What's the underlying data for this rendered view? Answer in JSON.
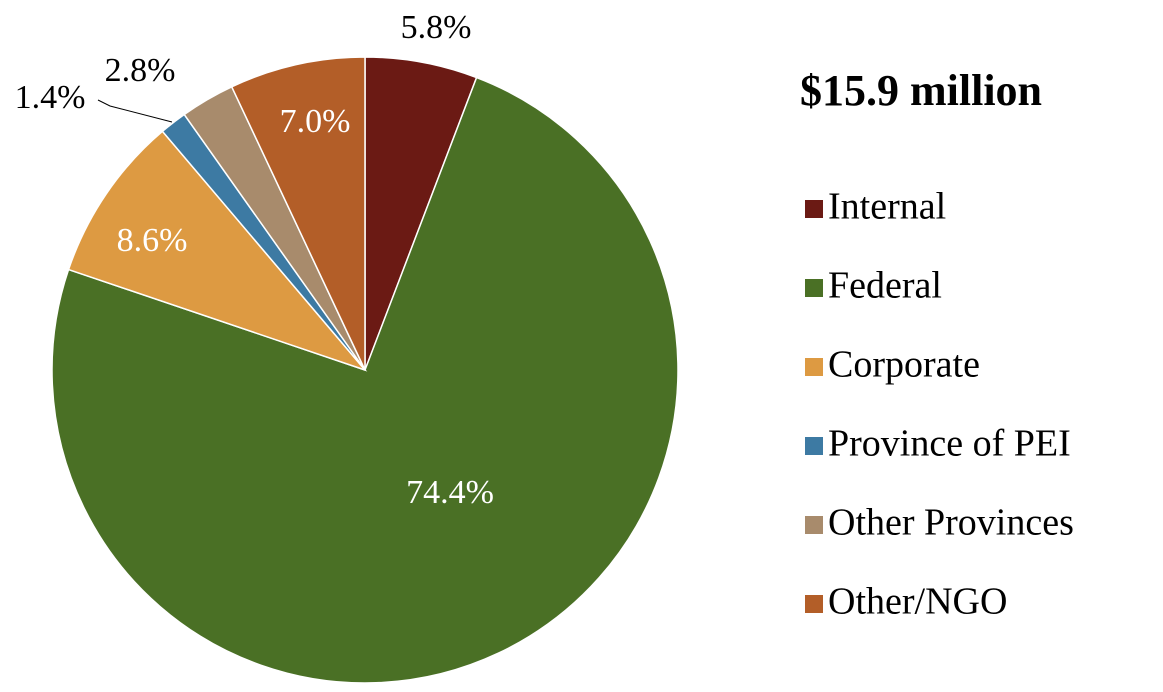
{
  "chart_data": {
    "type": "pie",
    "title": "$15.9 million",
    "categories": [
      "Internal",
      "Federal",
      "Corporate",
      "Province of PEI",
      "Other Provinces",
      "Other/NGO"
    ],
    "values": [
      5.8,
      74.4,
      8.6,
      1.4,
      2.8,
      7.0
    ],
    "value_labels": [
      "5.8%",
      "74.4%",
      "8.6%",
      "1.4%",
      "2.8%",
      "7.0%"
    ],
    "colors": [
      "#6b1a14",
      "#4a7025",
      "#dd9a42",
      "#3d7aa3",
      "#a88b6c",
      "#b35e28"
    ],
    "legend": "right"
  }
}
